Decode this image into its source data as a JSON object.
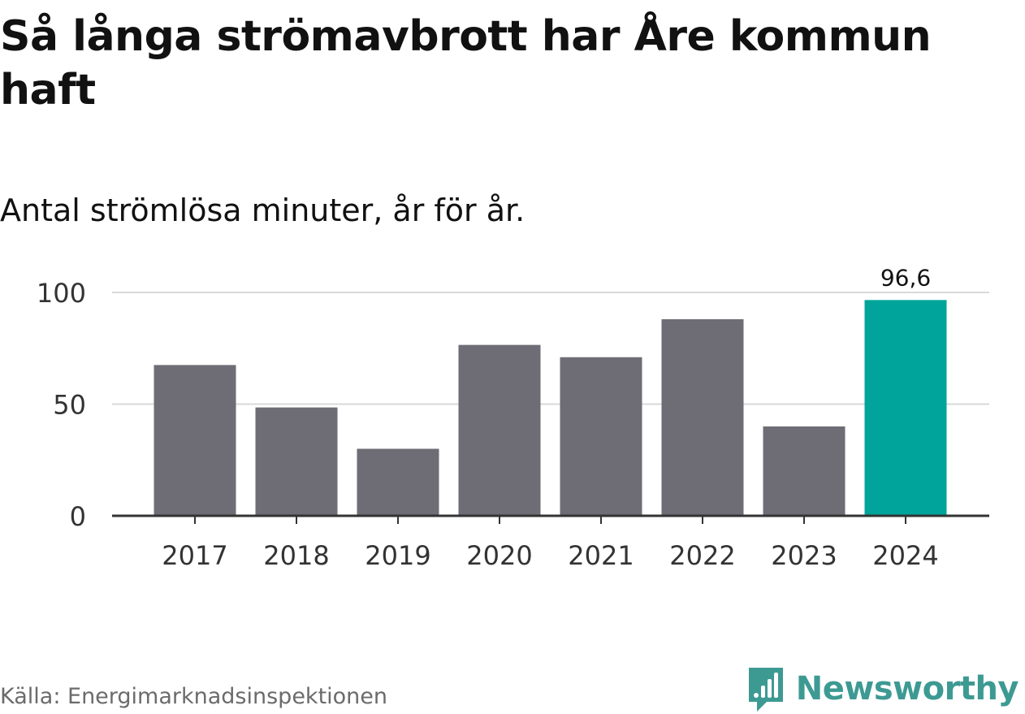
{
  "header": {
    "title": "Så långa strömavbrott har Åre kommun haft",
    "subtitle": "Antal strömlösa minuter, år för år."
  },
  "footer": {
    "source": "Källa: Energimarknadsinspektionen",
    "brand": "Newsworthy",
    "brand_icon": "bar-chart-speech-bubble-icon"
  },
  "colors": {
    "bar": "#6e6d75",
    "highlight": "#00a49a",
    "grid": "#d9d9d9",
    "axis": "#333333",
    "brand": "#3d9a93"
  },
  "chart_data": {
    "type": "bar",
    "categories": [
      "2017",
      "2018",
      "2019",
      "2020",
      "2021",
      "2022",
      "2023",
      "2024"
    ],
    "values": [
      67.5,
      48.5,
      30,
      76.5,
      71,
      88,
      40,
      96.6
    ],
    "highlight_index": 7,
    "data_labels": [
      {
        "index": 7,
        "text": "96,6"
      }
    ],
    "ylim": [
      0,
      100
    ],
    "yticks": [
      0,
      50,
      100
    ],
    "grid": true,
    "legend": false
  }
}
